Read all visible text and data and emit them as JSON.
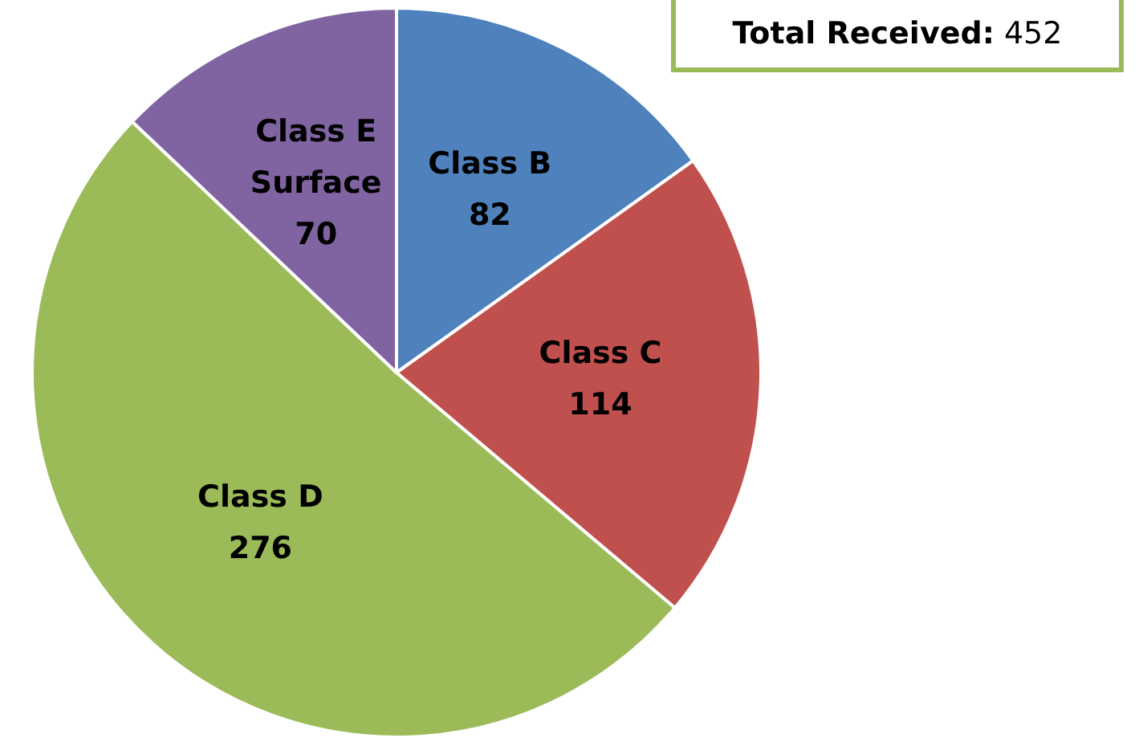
{
  "chart_data": {
    "type": "pie",
    "categories": [
      "Class B",
      "Class C",
      "Class D",
      "Class E Surface"
    ],
    "values": [
      82,
      114,
      276,
      70
    ],
    "colors": [
      "#4f81bd",
      "#c0504d",
      "#9bbb59",
      "#8064a2"
    ],
    "data_labels": true,
    "legend": false,
    "annotations": [
      "Total Received: 452"
    ]
  }
}
